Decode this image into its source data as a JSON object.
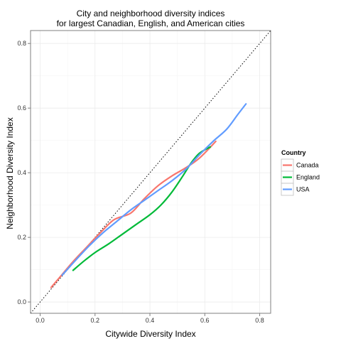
{
  "chart_data": {
    "type": "line",
    "title": [
      "City and neighborhood diversity indices",
      "for largest Canadian, English, and American cities"
    ],
    "xlabel": "Citywide Diversity Index",
    "ylabel": "Neighborhood Diversity Index",
    "xlim": [
      -0.035,
      0.84
    ],
    "ylim": [
      -0.035,
      0.84
    ],
    "xticks": [
      0.0,
      0.2,
      0.4,
      0.6,
      0.8
    ],
    "yticks": [
      0.0,
      0.2,
      0.4,
      0.6,
      0.8
    ],
    "xtick_labels": [
      "0.0",
      "0.2",
      "0.4",
      "0.6",
      "0.8"
    ],
    "ytick_labels": [
      "0.0",
      "0.2",
      "0.4",
      "0.6",
      "0.8"
    ],
    "grid": true,
    "reference_line": {
      "style": "dotted",
      "slope": 1,
      "intercept": 0,
      "color": "#000000"
    },
    "legend": {
      "title": "Country",
      "position": "right"
    },
    "series": [
      {
        "name": "Canada",
        "color": "#F8766D",
        "x": [
          0.04,
          0.08,
          0.12,
          0.17,
          0.22,
          0.27,
          0.33,
          0.38,
          0.43,
          0.48,
          0.53,
          0.58,
          0.64
        ],
        "y": [
          0.045,
          0.085,
          0.125,
          0.17,
          0.215,
          0.255,
          0.275,
          0.32,
          0.36,
          0.39,
          0.415,
          0.445,
          0.497
        ]
      },
      {
        "name": "England",
        "color": "#00BA38",
        "x": [
          0.12,
          0.16,
          0.2,
          0.25,
          0.3,
          0.35,
          0.4,
          0.44,
          0.48,
          0.52,
          0.55,
          0.58,
          0.62
        ],
        "y": [
          0.098,
          0.127,
          0.153,
          0.18,
          0.21,
          0.24,
          0.27,
          0.3,
          0.34,
          0.39,
          0.43,
          0.46,
          0.48
        ]
      },
      {
        "name": "USA",
        "color": "#619CFF",
        "x": [
          0.08,
          0.13,
          0.18,
          0.23,
          0.28,
          0.33,
          0.38,
          0.43,
          0.48,
          0.53,
          0.58,
          0.63,
          0.68,
          0.72,
          0.75
        ],
        "y": [
          0.083,
          0.13,
          0.175,
          0.215,
          0.25,
          0.285,
          0.315,
          0.345,
          0.375,
          0.41,
          0.455,
          0.497,
          0.535,
          0.58,
          0.613
        ]
      }
    ]
  }
}
